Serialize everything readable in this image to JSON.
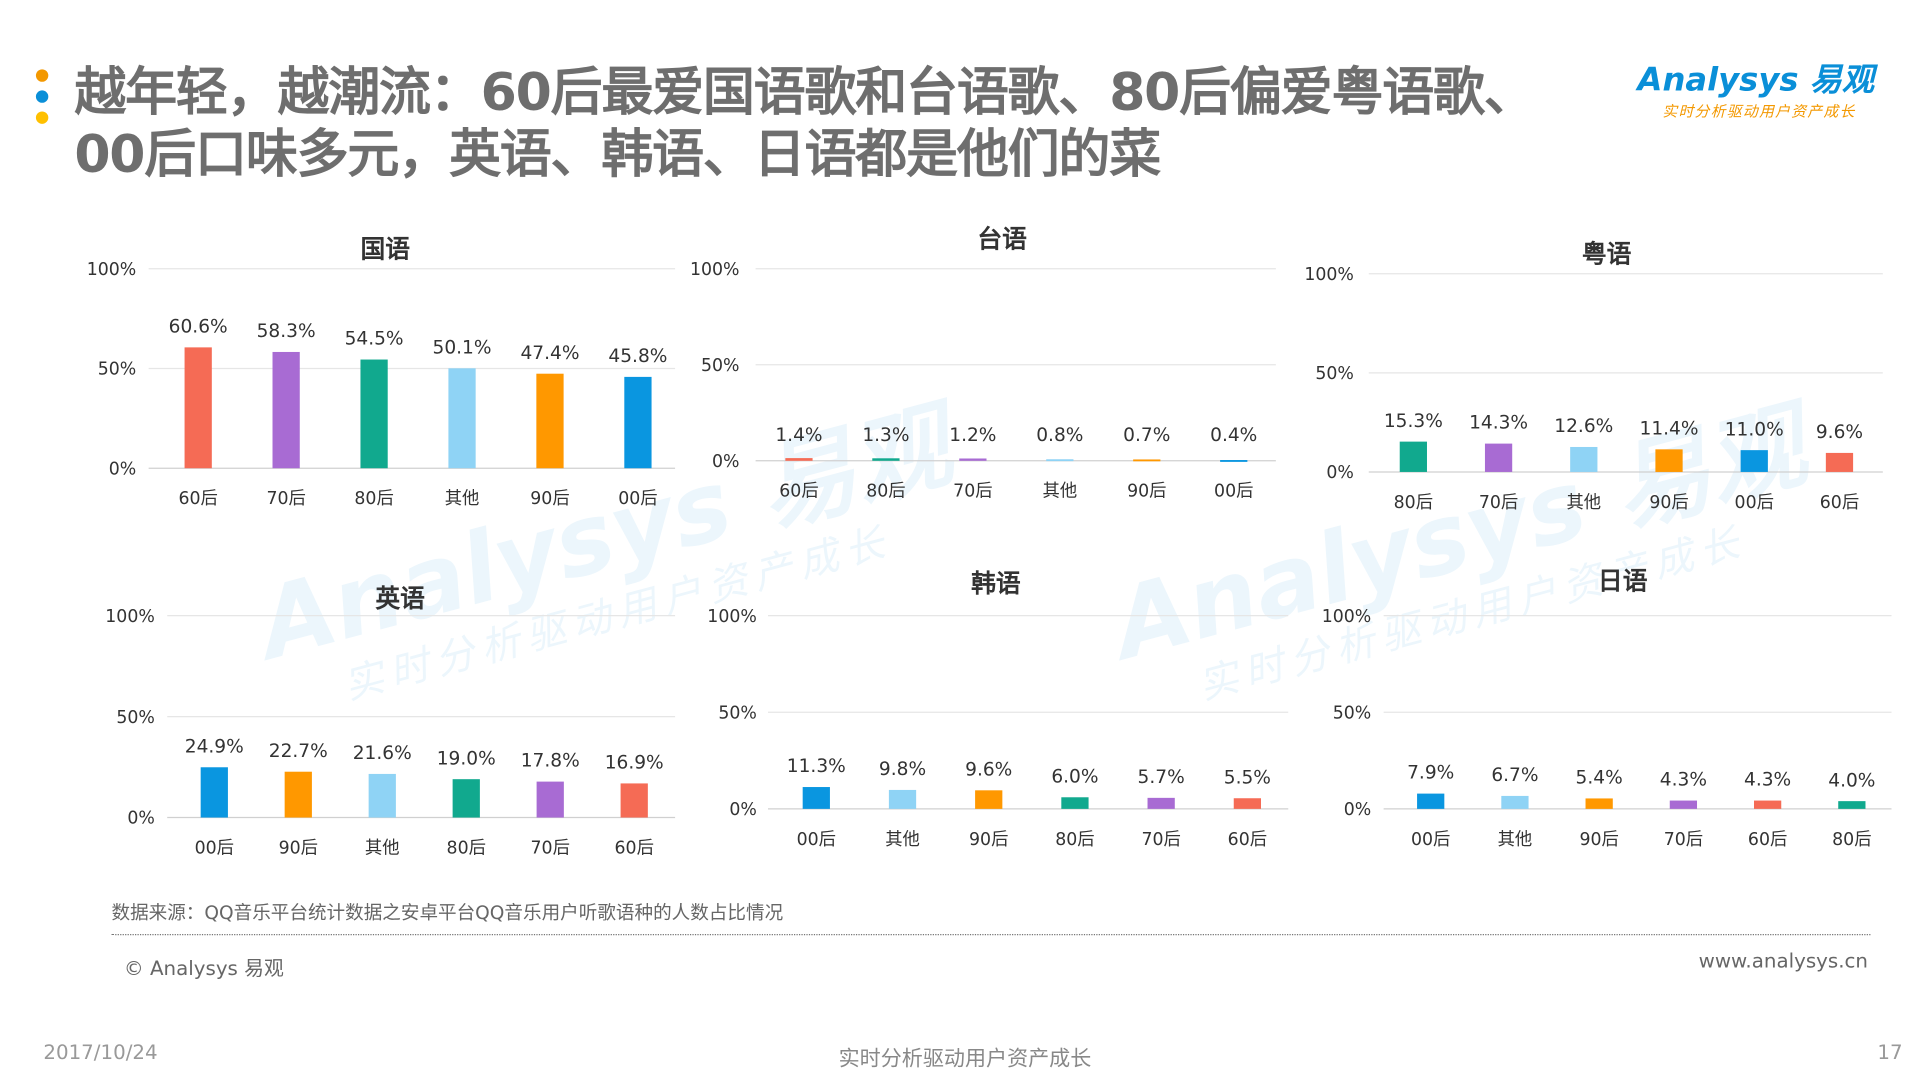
{
  "header": {
    "title_line1": "越年轻，越潮流：60后最爱国语歌和台语歌、80后偏爱粤语歌、",
    "title_line2": "00后口味多元，英语、韩语、日语都是他们的菜",
    "bullet_colors": [
      "#F39800",
      "#0A8FD8",
      "#FFC000"
    ],
    "logo_text": "Analysys 易观",
    "logo_slogan": "实时分析驱动用户资产成长"
  },
  "colors": {
    "60后": "#F56B55",
    "70后": "#A86BD3",
    "80后": "#11A98E",
    "其他": "#8FD3F5",
    "90后": "#FF9800",
    "00后": "#0A96E0"
  },
  "chart_data": [
    {
      "type": "bar",
      "title": "国语",
      "yticks": [
        "0%",
        "50%",
        "100%"
      ],
      "ylim": [
        0,
        100
      ],
      "grid": true,
      "categories": [
        "60后",
        "70后",
        "80后",
        "其他",
        "90后",
        "00后"
      ],
      "values": [
        60.6,
        58.3,
        54.5,
        50.1,
        47.4,
        45.8
      ],
      "labels": [
        "60.6%",
        "58.3%",
        "54.5%",
        "50.1%",
        "47.4%",
        "45.8%"
      ]
    },
    {
      "type": "bar",
      "title": "台语",
      "yticks": [
        "0%",
        "50%",
        "100%"
      ],
      "ylim": [
        0,
        100
      ],
      "grid": true,
      "categories": [
        "60后",
        "80后",
        "70后",
        "其他",
        "90后",
        "00后"
      ],
      "values": [
        1.4,
        1.3,
        1.2,
        0.8,
        0.7,
        0.4
      ],
      "labels": [
        "1.4%",
        "1.3%",
        "1.2%",
        "0.8%",
        "0.7%",
        "0.4%"
      ]
    },
    {
      "type": "bar",
      "title": "粤语",
      "yticks": [
        "0%",
        "50%",
        "100%"
      ],
      "ylim": [
        0,
        100
      ],
      "grid": true,
      "categories": [
        "80后",
        "70后",
        "其他",
        "90后",
        "00后",
        "60后"
      ],
      "values": [
        15.3,
        14.3,
        12.6,
        11.4,
        11.0,
        9.6
      ],
      "labels": [
        "15.3%",
        "14.3%",
        "12.6%",
        "11.4%",
        "11.0%",
        "9.6%"
      ]
    },
    {
      "type": "bar",
      "title": "英语",
      "yticks": [
        "0%",
        "50%",
        "100%"
      ],
      "ylim": [
        0,
        100
      ],
      "grid": true,
      "categories": [
        "00后",
        "90后",
        "其他",
        "80后",
        "70后",
        "60后"
      ],
      "values": [
        24.9,
        22.7,
        21.6,
        19.0,
        17.8,
        16.9
      ],
      "labels": [
        "24.9%",
        "22.7%",
        "21.6%",
        "19.0%",
        "17.8%",
        "16.9%"
      ]
    },
    {
      "type": "bar",
      "title": "韩语",
      "yticks": [
        "0%",
        "50%",
        "100%"
      ],
      "ylim": [
        0,
        100
      ],
      "grid": true,
      "categories": [
        "00后",
        "其他",
        "90后",
        "80后",
        "70后",
        "60后"
      ],
      "values": [
        11.3,
        9.8,
        9.6,
        6.0,
        5.7,
        5.5
      ],
      "labels": [
        "11.3%",
        "9.8%",
        "9.6%",
        "6.0%",
        "5.7%",
        "5.5%"
      ]
    },
    {
      "type": "bar",
      "title": "日语",
      "yticks": [
        "0%",
        "50%",
        "100%"
      ],
      "ylim": [
        0,
        100
      ],
      "grid": true,
      "categories": [
        "00后",
        "其他",
        "90后",
        "70后",
        "60后",
        "80后"
      ],
      "values": [
        7.9,
        6.7,
        5.4,
        4.3,
        4.3,
        4.0
      ],
      "labels": [
        "7.9%",
        "6.7%",
        "5.4%",
        "4.3%",
        "4.3%",
        "4.0%"
      ]
    }
  ],
  "footer": {
    "source": "数据来源：QQ音乐平台统计数据之安卓平台QQ音乐用户听歌语种的人数占比情况",
    "copyright": "© Analysys 易观",
    "url": "www.analysys.cn",
    "date": "2017/10/24",
    "slogan": "实时分析驱动用户资产成长",
    "page": "17"
  }
}
